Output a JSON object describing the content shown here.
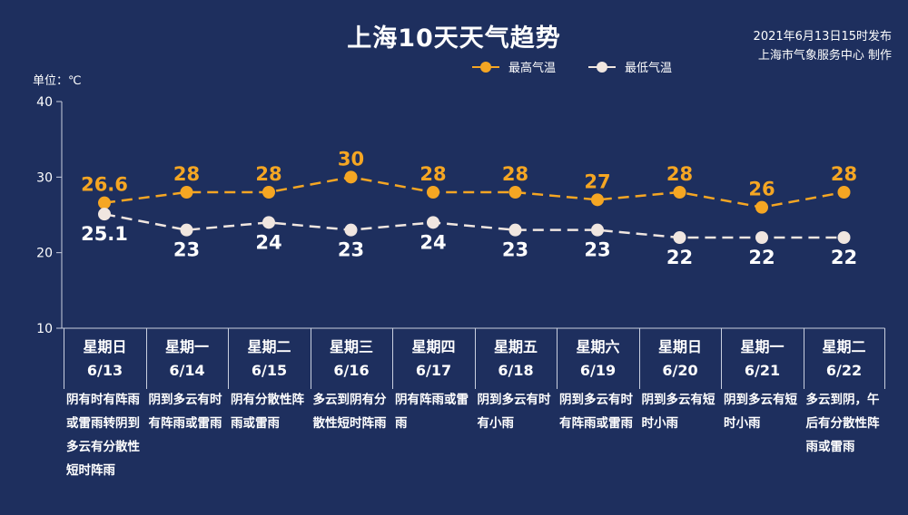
{
  "header": {
    "title": "上海10天天气趋势",
    "publish_time": "2021年6月13日15时发布",
    "publisher": "上海市气象服务中心 制作",
    "unit": "单位：℃"
  },
  "chart_data": {
    "type": "line",
    "title": "上海10天天气趋势",
    "ylabel": "单位：℃",
    "ylim": [
      10,
      40
    ],
    "yticks": [
      10,
      20,
      30,
      40
    ],
    "categories": [
      "星期日 6/13",
      "星期一 6/14",
      "星期二 6/15",
      "星期三 6/16",
      "星期四 6/17",
      "星期五 6/18",
      "星期六 6/19",
      "星期日 6/20",
      "星期一 6/21",
      "星期二 6/22"
    ],
    "series": [
      {
        "name": "最高气温",
        "color": "#f5a623",
        "values": [
          26.6,
          28,
          28,
          30,
          28,
          28,
          27,
          28,
          26,
          28
        ],
        "labels": [
          "26.6",
          "28",
          "28",
          "30",
          "28",
          "28",
          "27",
          "28",
          "26",
          "28"
        ]
      },
      {
        "name": "最低气温",
        "color": "#f0e6e0",
        "values": [
          25.1,
          23,
          24,
          23,
          24,
          23,
          23,
          22,
          22,
          22
        ],
        "labels": [
          "25.1",
          "23",
          "24",
          "23",
          "24",
          "23",
          "23",
          "22",
          "22",
          "22"
        ]
      }
    ],
    "legend": "top-center",
    "grid": false
  },
  "days": [
    {
      "weekday": "星期日",
      "date": "6/13",
      "desc": "阴有时有阵雨或雷雨转阴到多云有分散性短时阵雨"
    },
    {
      "weekday": "星期一",
      "date": "6/14",
      "desc": "阴到多云有时有阵雨或雷雨"
    },
    {
      "weekday": "星期二",
      "date": "6/15",
      "desc": "阴有分散性阵雨或雷雨"
    },
    {
      "weekday": "星期三",
      "date": "6/16",
      "desc": "多云到阴有分散性短时阵雨"
    },
    {
      "weekday": "星期四",
      "date": "6/17",
      "desc": "阴有阵雨或雷雨"
    },
    {
      "weekday": "星期五",
      "date": "6/18",
      "desc": "阴到多云有时有小雨"
    },
    {
      "weekday": "星期六",
      "date": "6/19",
      "desc": "阴到多云有时有阵雨或雷雨"
    },
    {
      "weekday": "星期日",
      "date": "6/20",
      "desc": "阴到多云有短时小雨"
    },
    {
      "weekday": "星期一",
      "date": "6/21",
      "desc": "阴到多云有短时小雨"
    },
    {
      "weekday": "星期二",
      "date": "6/22",
      "desc": "多云到阴，午后有分散性阵雨或雷雨"
    }
  ]
}
